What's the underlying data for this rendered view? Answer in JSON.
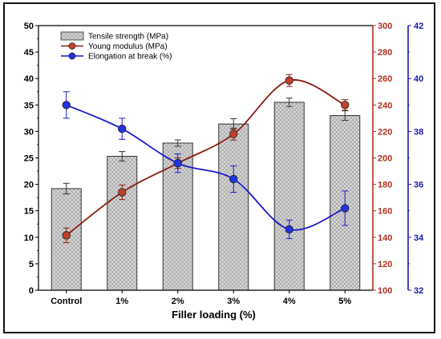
{
  "chart_data": {
    "type": "bar",
    "categories": [
      "Control",
      "1%",
      "2%",
      "3%",
      "4%",
      "5%"
    ],
    "xlabel": "Filler loading (%)",
    "series": [
      {
        "name": "Tensile strength (MPa)",
        "type": "bar",
        "axis": "left",
        "values": [
          19.2,
          25.3,
          27.8,
          31.4,
          35.5,
          33.0
        ],
        "errors": [
          1.0,
          0.9,
          0.6,
          1.0,
          0.8,
          0.9
        ],
        "color": "#c8c8c8"
      },
      {
        "name": "Young modulus (MPa)",
        "type": "line",
        "axis": "right1",
        "values": [
          141.5,
          174,
          196,
          218,
          258.5,
          240
        ],
        "errors": [
          5.5,
          5.5,
          4.0,
          4.5,
          4.5,
          4.0
        ],
        "color": "#8b1a0e",
        "marker_color": "#c0402a"
      },
      {
        "name": "Elongation at break (%)",
        "type": "line",
        "axis": "right2",
        "values": [
          39.0,
          38.1,
          36.8,
          36.2,
          34.3,
          35.1
        ],
        "errors": [
          0.5,
          0.4,
          0.35,
          0.5,
          0.35,
          0.65
        ],
        "color": "#1a1acc",
        "marker_color": "#2233dd"
      }
    ],
    "axes": {
      "left": {
        "ylim": [
          0,
          50
        ],
        "ticks": [
          0,
          5,
          10,
          15,
          20,
          25,
          30,
          35,
          40,
          45,
          50
        ],
        "color": "#000000"
      },
      "right1": {
        "ylim": [
          100,
          300
        ],
        "ticks": [
          100,
          120,
          140,
          160,
          180,
          200,
          220,
          240,
          260,
          280,
          300
        ],
        "color": "#b03020"
      },
      "right2": {
        "ylim": [
          32,
          42
        ],
        "ticks": [
          32,
          34,
          36,
          38,
          40,
          42
        ],
        "color": "#1a1aaa"
      }
    },
    "legend": {
      "placement": "top-left",
      "entries": [
        "Tensile strength (MPa)",
        "Young modulus (MPa)",
        "Elongation at break (%)"
      ]
    }
  }
}
